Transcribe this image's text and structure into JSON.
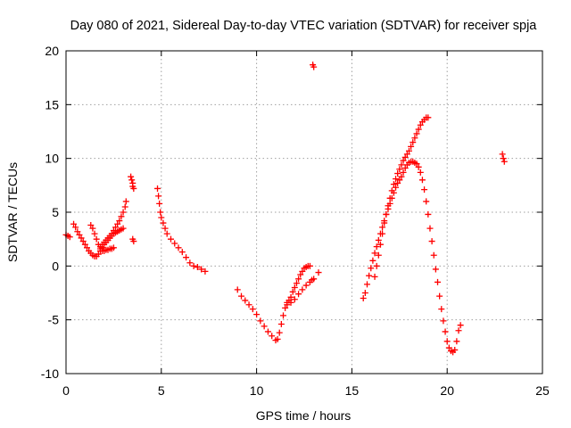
{
  "chart_data": {
    "type": "scatter",
    "title": "Day 080 of 2021, Sidereal Day-to-day VTEC variation (SDTVAR) for receiver spja",
    "xlabel": "GPS time / hours",
    "ylabel": "SDTVAR / TECUs",
    "xlim": [
      0,
      25
    ],
    "ylim": [
      -10,
      20
    ],
    "xticks": [
      0,
      5,
      10,
      15,
      20,
      25
    ],
    "yticks": [
      -10,
      -5,
      0,
      5,
      10,
      15,
      20
    ],
    "grid": true,
    "marker": "plus",
    "color": "#ff0000",
    "series": [
      {
        "name": "early-group",
        "points": [
          [
            0.0,
            2.9
          ],
          [
            0.1,
            2.8
          ],
          [
            0.2,
            2.7
          ],
          [
            0.4,
            3.9
          ],
          [
            0.5,
            3.6
          ],
          [
            0.6,
            3.2
          ],
          [
            0.7,
            2.9
          ],
          [
            0.8,
            2.6
          ],
          [
            0.9,
            2.3
          ],
          [
            1.0,
            2.0
          ],
          [
            1.1,
            1.7
          ],
          [
            1.2,
            1.4
          ],
          [
            1.3,
            1.2
          ],
          [
            1.4,
            1.0
          ],
          [
            1.5,
            0.9
          ],
          [
            1.6,
            0.9
          ],
          [
            1.7,
            1.1
          ],
          [
            1.8,
            1.4
          ],
          [
            1.9,
            1.7
          ],
          [
            2.0,
            2.0
          ],
          [
            2.1,
            2.2
          ],
          [
            2.2,
            2.4
          ],
          [
            2.3,
            2.6
          ],
          [
            2.4,
            2.8
          ],
          [
            2.5,
            3.0
          ],
          [
            2.6,
            3.1
          ],
          [
            2.7,
            3.2
          ],
          [
            2.8,
            3.3
          ],
          [
            2.9,
            3.4
          ],
          [
            3.0,
            3.5
          ],
          [
            1.3,
            3.8
          ],
          [
            1.4,
            3.5
          ],
          [
            1.5,
            3.0
          ],
          [
            1.6,
            2.5
          ],
          [
            1.7,
            2.0
          ],
          [
            1.8,
            1.6
          ],
          [
            1.9,
            1.4
          ],
          [
            2.0,
            1.4
          ],
          [
            2.1,
            1.5
          ],
          [
            2.2,
            1.5
          ],
          [
            2.3,
            1.6
          ],
          [
            2.4,
            1.6
          ],
          [
            2.5,
            1.7
          ],
          [
            1.8,
            1.8
          ],
          [
            1.9,
            2.0
          ],
          [
            2.0,
            2.2
          ],
          [
            2.1,
            2.4
          ],
          [
            2.2,
            2.6
          ],
          [
            2.3,
            2.8
          ],
          [
            2.4,
            3.0
          ],
          [
            2.5,
            3.3
          ],
          [
            2.6,
            3.6
          ],
          [
            2.7,
            3.9
          ],
          [
            2.8,
            4.2
          ],
          [
            2.9,
            4.6
          ],
          [
            3.0,
            5.0
          ],
          [
            3.1,
            5.5
          ],
          [
            3.15,
            6.0
          ],
          [
            3.4,
            8.3
          ],
          [
            3.45,
            8.0
          ],
          [
            3.5,
            7.7
          ],
          [
            3.5,
            7.4
          ],
          [
            3.55,
            7.2
          ],
          [
            3.5,
            2.5
          ],
          [
            3.55,
            2.3
          ]
        ]
      },
      {
        "name": "morning-decay",
        "points": [
          [
            4.8,
            7.2
          ],
          [
            4.85,
            6.5
          ],
          [
            4.9,
            5.8
          ],
          [
            4.95,
            5.0
          ],
          [
            5.0,
            4.5
          ],
          [
            5.1,
            4.0
          ],
          [
            5.2,
            3.5
          ],
          [
            5.3,
            3.0
          ],
          [
            5.5,
            2.5
          ],
          [
            5.7,
            2.1
          ],
          [
            5.9,
            1.7
          ],
          [
            6.1,
            1.3
          ],
          [
            6.3,
            0.8
          ],
          [
            6.5,
            0.3
          ],
          [
            6.7,
            0.0
          ],
          [
            6.9,
            -0.1
          ],
          [
            7.1,
            -0.3
          ],
          [
            7.3,
            -0.5
          ]
        ]
      },
      {
        "name": "midday-dip",
        "points": [
          [
            9.0,
            -2.2
          ],
          [
            9.2,
            -2.8
          ],
          [
            9.4,
            -3.2
          ],
          [
            9.6,
            -3.6
          ],
          [
            9.8,
            -4.0
          ],
          [
            10.0,
            -4.5
          ],
          [
            10.2,
            -5.1
          ],
          [
            10.4,
            -5.6
          ],
          [
            10.6,
            -6.1
          ],
          [
            10.8,
            -6.5
          ],
          [
            11.0,
            -6.9
          ],
          [
            11.1,
            -6.8
          ],
          [
            11.2,
            -6.2
          ],
          [
            11.3,
            -5.4
          ],
          [
            11.4,
            -4.6
          ],
          [
            11.5,
            -3.9
          ],
          [
            11.6,
            -3.4
          ],
          [
            11.7,
            -3.2
          ],
          [
            11.8,
            -2.9
          ],
          [
            11.9,
            -2.4
          ],
          [
            12.0,
            -2.0
          ],
          [
            12.1,
            -1.6
          ],
          [
            12.2,
            -1.2
          ],
          [
            12.3,
            -0.8
          ],
          [
            12.4,
            -0.5
          ],
          [
            12.5,
            -0.2
          ],
          [
            12.6,
            -0.1
          ],
          [
            12.7,
            0.0
          ],
          [
            12.8,
            0.0
          ],
          [
            11.6,
            -3.6
          ],
          [
            11.8,
            -3.4
          ],
          [
            12.0,
            -3.1
          ],
          [
            12.2,
            -2.6
          ],
          [
            12.4,
            -2.2
          ],
          [
            12.6,
            -1.8
          ],
          [
            12.8,
            -1.5
          ],
          [
            12.9,
            -1.3
          ],
          [
            13.0,
            -1.2
          ],
          [
            13.25,
            -0.6
          ],
          [
            12.95,
            18.7
          ],
          [
            13.0,
            18.5
          ]
        ]
      },
      {
        "name": "evening-rise",
        "points": [
          [
            15.6,
            -3.0
          ],
          [
            15.7,
            -2.5
          ],
          [
            15.8,
            -1.7
          ],
          [
            15.9,
            -0.9
          ],
          [
            16.0,
            -0.2
          ],
          [
            16.1,
            0.5
          ],
          [
            16.2,
            1.2
          ],
          [
            16.3,
            1.8
          ],
          [
            16.4,
            2.4
          ],
          [
            16.5,
            3.0
          ],
          [
            16.6,
            3.6
          ],
          [
            16.7,
            4.2
          ],
          [
            16.8,
            4.8
          ],
          [
            16.9,
            5.3
          ],
          [
            17.0,
            5.8
          ],
          [
            17.1,
            6.3
          ],
          [
            17.2,
            6.8
          ],
          [
            17.3,
            7.3
          ],
          [
            17.4,
            7.7
          ],
          [
            17.5,
            8.0
          ],
          [
            16.2,
            -1.0
          ],
          [
            16.3,
            0.0
          ],
          [
            16.4,
            1.0
          ],
          [
            16.5,
            2.0
          ],
          [
            16.6,
            3.0
          ],
          [
            16.7,
            4.0
          ],
          [
            16.8,
            4.8
          ],
          [
            16.9,
            5.6
          ],
          [
            17.0,
            6.3
          ],
          [
            17.1,
            7.0
          ],
          [
            17.2,
            7.6
          ],
          [
            17.3,
            8.1
          ],
          [
            17.4,
            8.6
          ],
          [
            17.5,
            9.0
          ],
          [
            17.6,
            9.4
          ],
          [
            17.7,
            9.8
          ],
          [
            17.8,
            10.1
          ],
          [
            17.9,
            10.4
          ],
          [
            18.0,
            10.7
          ],
          [
            18.1,
            11.1
          ],
          [
            18.2,
            11.5
          ],
          [
            18.3,
            11.9
          ],
          [
            18.4,
            12.3
          ],
          [
            18.5,
            12.7
          ],
          [
            18.6,
            13.1
          ],
          [
            18.7,
            13.4
          ],
          [
            18.8,
            13.6
          ],
          [
            18.9,
            13.8
          ],
          [
            19.0,
            13.8
          ],
          [
            17.6,
            8.3
          ],
          [
            17.7,
            8.7
          ],
          [
            17.8,
            9.1
          ],
          [
            17.9,
            9.4
          ],
          [
            18.0,
            9.6
          ],
          [
            18.1,
            9.7
          ],
          [
            18.2,
            9.7
          ],
          [
            18.3,
            9.6
          ],
          [
            18.4,
            9.5
          ],
          [
            18.5,
            9.2
          ],
          [
            18.6,
            8.7
          ],
          [
            18.7,
            8.0
          ],
          [
            18.8,
            7.1
          ],
          [
            18.9,
            6.0
          ],
          [
            19.0,
            4.8
          ],
          [
            19.1,
            3.5
          ],
          [
            19.2,
            2.3
          ],
          [
            19.3,
            1.0
          ],
          [
            19.4,
            -0.3
          ],
          [
            19.5,
            -1.5
          ],
          [
            19.6,
            -2.8
          ],
          [
            19.7,
            -4.0
          ],
          [
            19.8,
            -5.1
          ],
          [
            19.9,
            -6.1
          ],
          [
            20.0,
            -7.0
          ],
          [
            20.1,
            -7.6
          ],
          [
            20.2,
            -7.9
          ],
          [
            20.3,
            -8.0
          ],
          [
            20.4,
            -7.8
          ],
          [
            20.5,
            -7.0
          ],
          [
            20.6,
            -6.0
          ],
          [
            20.7,
            -5.5
          ],
          [
            22.9,
            10.4
          ],
          [
            22.95,
            10.0
          ],
          [
            23.0,
            9.7
          ]
        ]
      }
    ]
  }
}
